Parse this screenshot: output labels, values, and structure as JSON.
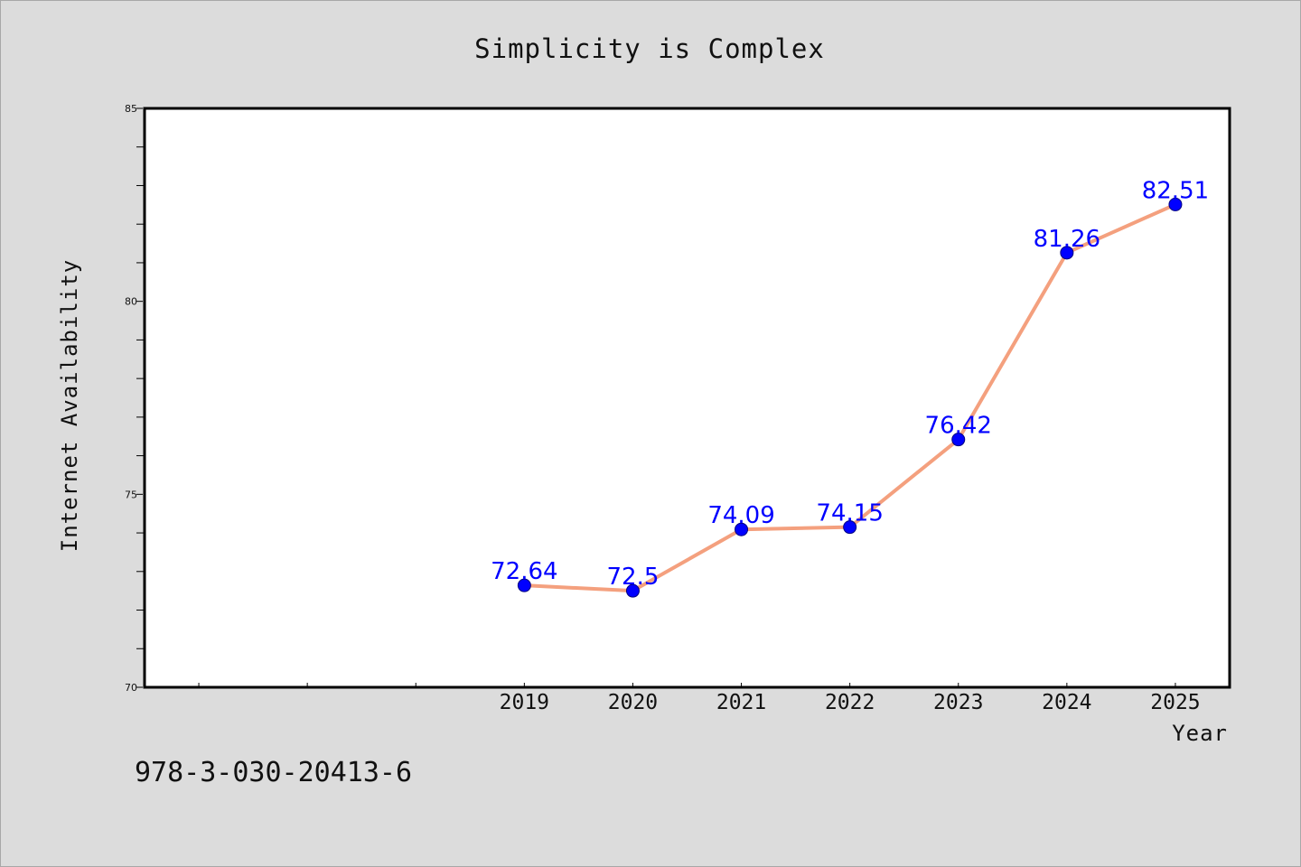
{
  "chart_data": {
    "type": "line",
    "title": "Simplicity is Complex",
    "xlabel": "Year",
    "ylabel": "Internet Availability",
    "categories": [
      "2019",
      "2020",
      "2021",
      "2022",
      "2023",
      "2024",
      "2025"
    ],
    "values": [
      72.64,
      72.5,
      74.09,
      74.15,
      76.42,
      81.26,
      82.51
    ],
    "data_labels": [
      "72.64",
      "72.5",
      "74.09",
      "74.15",
      "76.42",
      "81.26",
      "82.51"
    ],
    "ylim": [
      70,
      85
    ],
    "yticks": [
      70,
      75,
      80,
      85
    ],
    "ytick_labels": [
      "70",
      "75",
      "80",
      "85"
    ],
    "xlim": [
      2015.5,
      2025.5
    ],
    "grid": false,
    "legend": "none",
    "line_color": "#f4a07e",
    "marker_color": "#0000ff",
    "label_color": "#0000ff"
  },
  "footer": {
    "isbn": "978-3-030-20413-6"
  }
}
